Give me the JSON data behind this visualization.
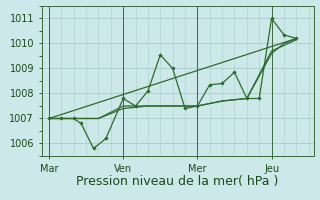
{
  "xlabel": "Pression niveau de la mer( hPa )",
  "bg_color": "#cce8e8",
  "grid_color": "#aacccc",
  "line_color": "#2d6b2d",
  "dark_line_color": "#1a4a1a",
  "ylim": [
    1005.5,
    1011.5
  ],
  "yticks": [
    1006,
    1007,
    1008,
    1009,
    1010,
    1011
  ],
  "xtick_labels": [
    "Mar",
    "Ven",
    "Mer",
    "Jeu"
  ],
  "xtick_positions": [
    0,
    3,
    6,
    9
  ],
  "xlim": [
    -0.3,
    10.7
  ],
  "series1_x": [
    0,
    0.5,
    1,
    1.3,
    1.8,
    2.3,
    3.0,
    3.5,
    4.0,
    4.5,
    5.0,
    5.5,
    6.0,
    6.5,
    7.0,
    7.5,
    8.0,
    8.5,
    9.0,
    9.5,
    10.0
  ],
  "series1_y": [
    1007.0,
    1007.0,
    1007.0,
    1006.8,
    1005.8,
    1006.2,
    1007.8,
    1007.5,
    1008.1,
    1009.55,
    1009.0,
    1007.4,
    1007.5,
    1008.35,
    1008.4,
    1008.85,
    1007.8,
    1007.8,
    1011.0,
    1010.35,
    1010.2
  ],
  "series2_x": [
    0,
    1,
    2,
    3,
    4,
    5,
    6,
    6.5,
    7,
    7.5,
    8,
    9,
    9.5,
    10
  ],
  "series2_y": [
    1007.0,
    1007.0,
    1007.0,
    1007.5,
    1007.5,
    1007.5,
    1007.5,
    1007.6,
    1007.7,
    1007.75,
    1007.8,
    1009.6,
    1010.0,
    1010.2
  ],
  "series3_x": [
    0,
    10
  ],
  "series3_y": [
    1007.0,
    1010.2
  ],
  "series4_x": [
    0,
    1,
    2,
    3,
    4,
    5,
    6,
    7,
    8,
    9,
    10
  ],
  "series4_y": [
    1007.0,
    1007.0,
    1007.0,
    1007.4,
    1007.5,
    1007.5,
    1007.5,
    1007.7,
    1007.8,
    1009.7,
    1010.15
  ],
  "vline_positions": [
    0,
    3,
    6,
    9
  ],
  "xlabel_fontsize": 9,
  "tick_fontsize": 7,
  "minor_xtick_step": 0.5
}
